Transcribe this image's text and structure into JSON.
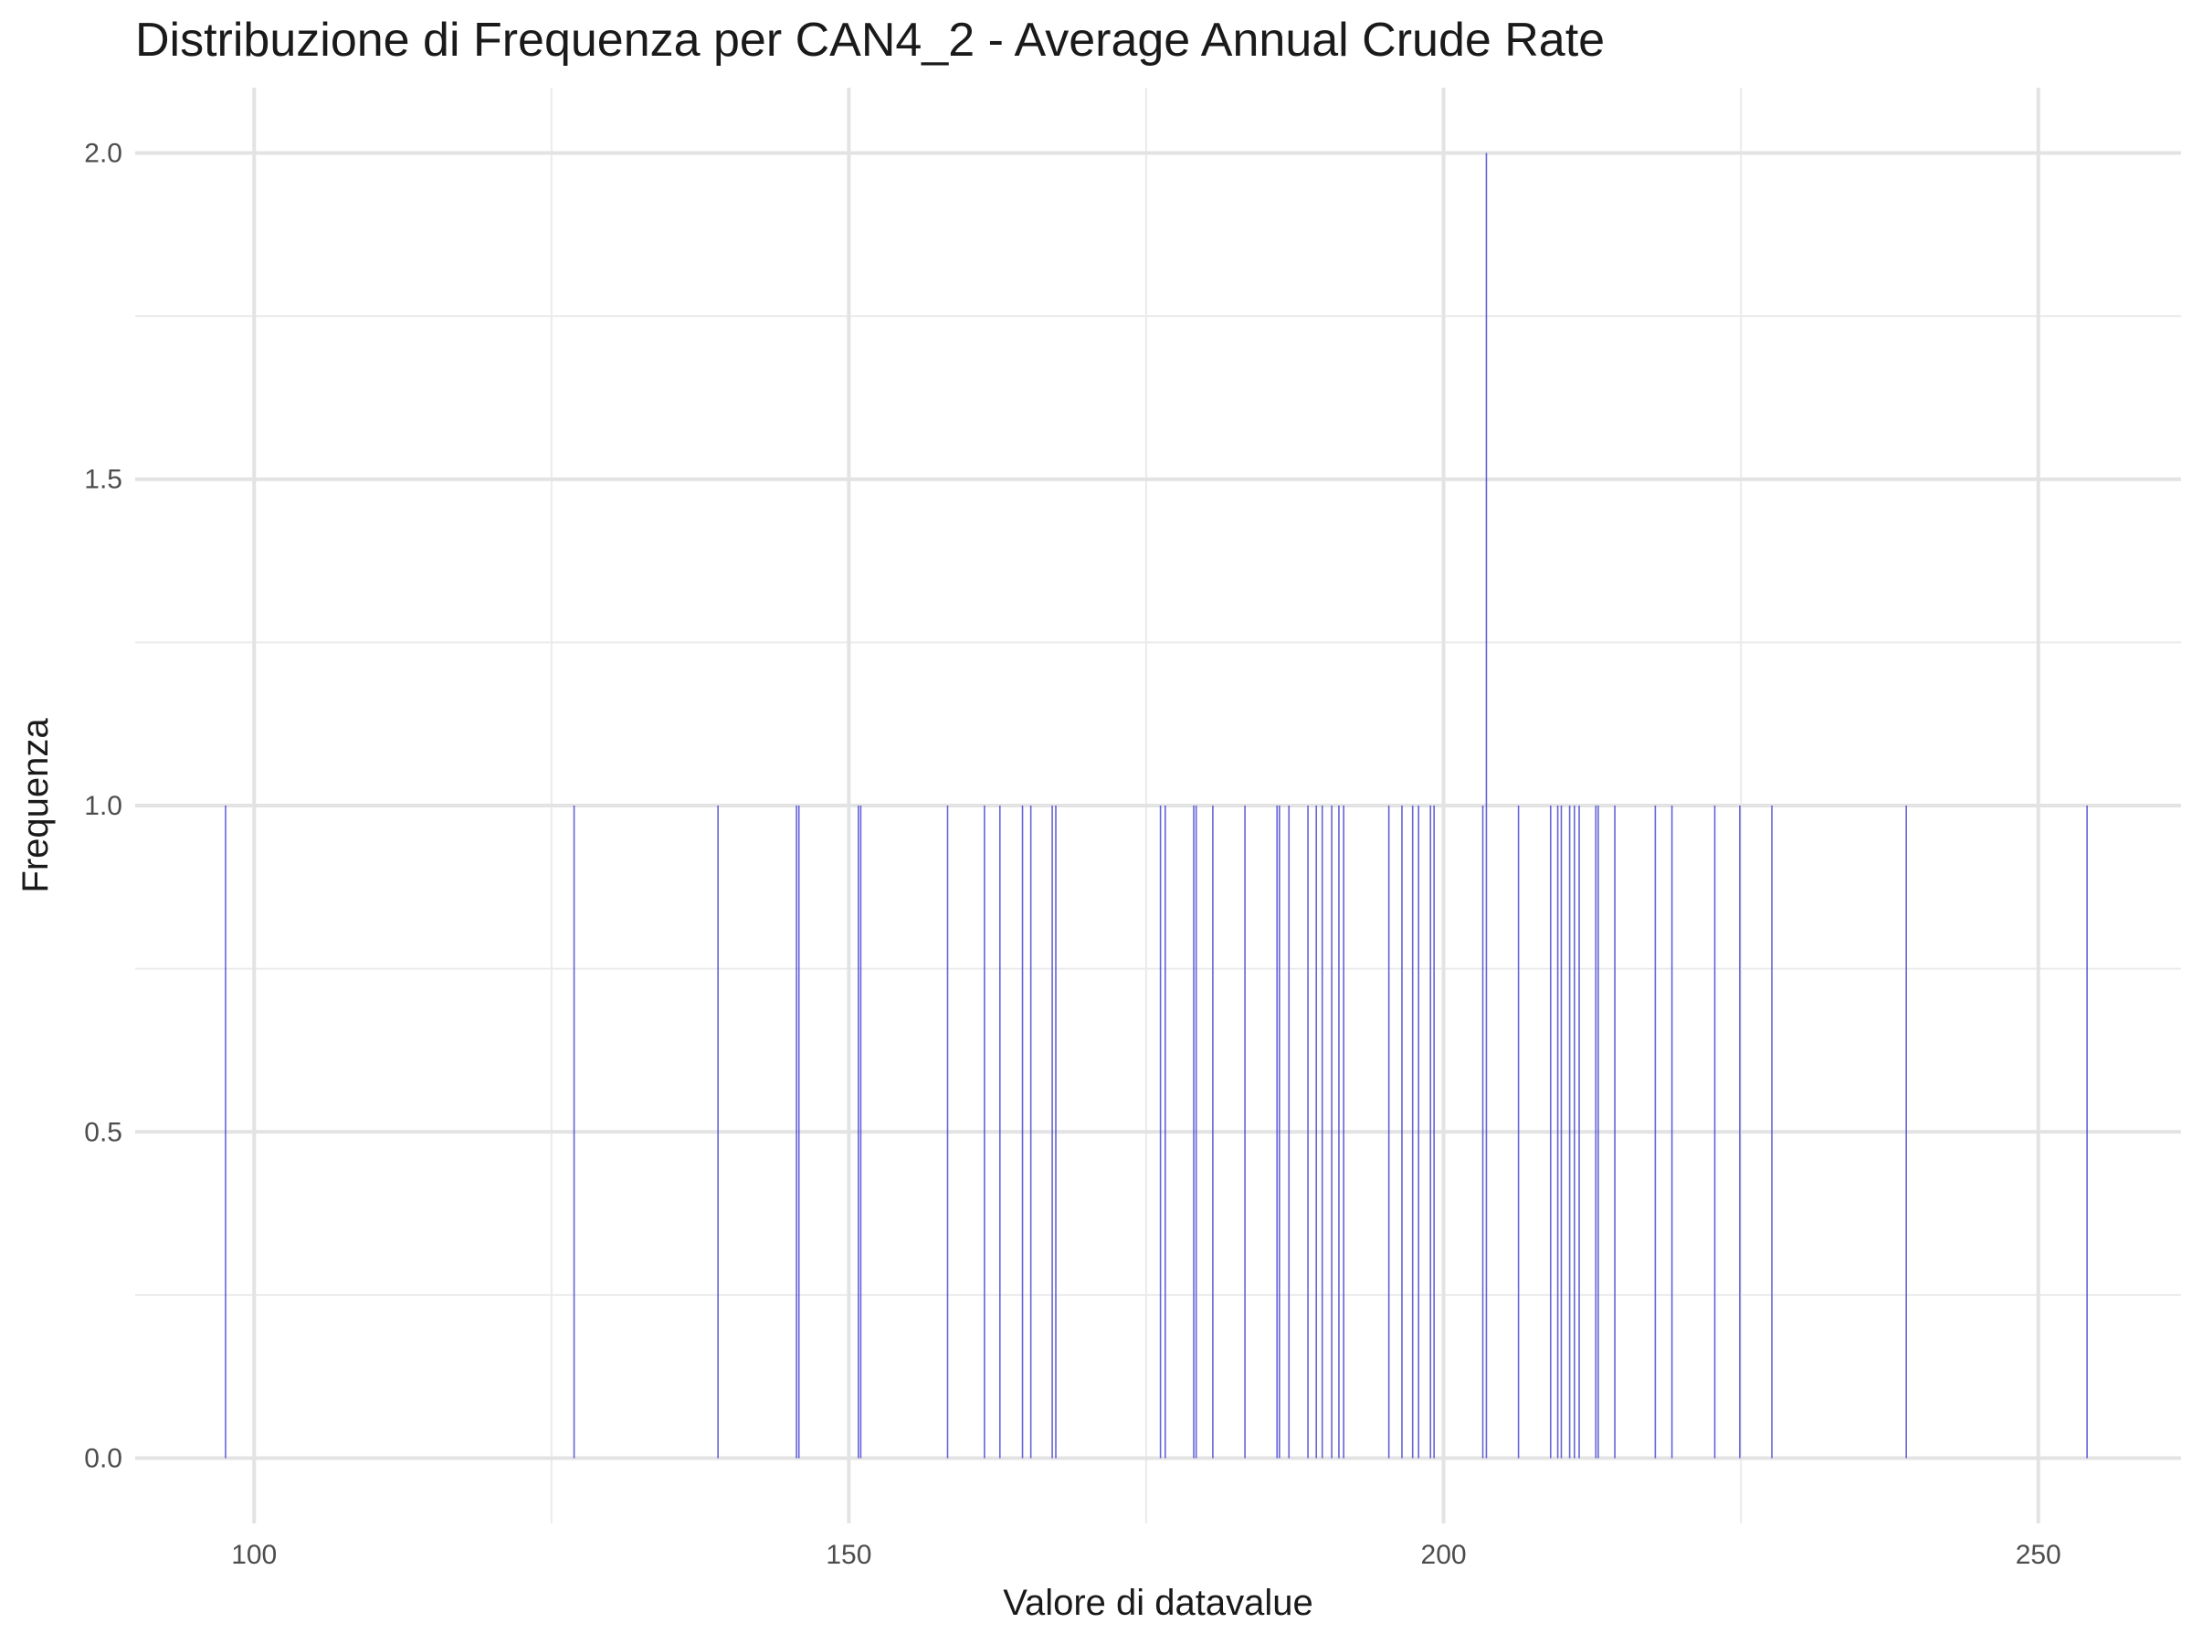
{
  "chart_data": {
    "type": "bar",
    "title": "Distribuzione di Frequenza per CAN4_2 - Average Annual Crude Rate",
    "xlabel": "Valore di datavalue",
    "ylabel": "Frequenza",
    "xlim": [
      90,
      262
    ],
    "ylim": [
      -0.1,
      2.1
    ],
    "x_ticks": [
      100,
      150,
      200,
      250
    ],
    "x_tick_labels": [
      "100",
      "150",
      "200",
      "250"
    ],
    "y_ticks": [
      0,
      0.5,
      1,
      1.5,
      2
    ],
    "y_tick_labels": [
      "0.0",
      "0.5",
      "1.0",
      "1.5",
      "2.0"
    ],
    "grid": true,
    "bar_color": "#4B48D4",
    "bars": [
      {
        "x": 97.6,
        "count": 1
      },
      {
        "x": 126.9,
        "count": 1
      },
      {
        "x": 139.0,
        "count": 1
      },
      {
        "x": 145.6,
        "count": 1
      },
      {
        "x": 145.8,
        "count": 1
      },
      {
        "x": 150.8,
        "count": 1
      },
      {
        "x": 151.0,
        "count": 1
      },
      {
        "x": 158.3,
        "count": 1
      },
      {
        "x": 161.4,
        "count": 1
      },
      {
        "x": 162.7,
        "count": 1
      },
      {
        "x": 164.6,
        "count": 1
      },
      {
        "x": 165.3,
        "count": 1
      },
      {
        "x": 167.1,
        "count": 1
      },
      {
        "x": 167.4,
        "count": 1
      },
      {
        "x": 176.2,
        "count": 1
      },
      {
        "x": 176.6,
        "count": 1
      },
      {
        "x": 179.0,
        "count": 1
      },
      {
        "x": 179.2,
        "count": 1
      },
      {
        "x": 180.6,
        "count": 1
      },
      {
        "x": 183.3,
        "count": 1
      },
      {
        "x": 186.0,
        "count": 1
      },
      {
        "x": 186.2,
        "count": 1
      },
      {
        "x": 187.0,
        "count": 1
      },
      {
        "x": 188.6,
        "count": 1
      },
      {
        "x": 189.3,
        "count": 1
      },
      {
        "x": 189.8,
        "count": 1
      },
      {
        "x": 190.6,
        "count": 1
      },
      {
        "x": 191.2,
        "count": 1
      },
      {
        "x": 191.6,
        "count": 1
      },
      {
        "x": 195.4,
        "count": 1
      },
      {
        "x": 196.5,
        "count": 1
      },
      {
        "x": 197.4,
        "count": 1
      },
      {
        "x": 197.9,
        "count": 1
      },
      {
        "x": 198.9,
        "count": 1
      },
      {
        "x": 199.2,
        "count": 1
      },
      {
        "x": 203.3,
        "count": 1
      },
      {
        "x": 203.6,
        "count": 2
      },
      {
        "x": 206.3,
        "count": 1
      },
      {
        "x": 209.0,
        "count": 1
      },
      {
        "x": 209.6,
        "count": 1
      },
      {
        "x": 209.9,
        "count": 1
      },
      {
        "x": 210.6,
        "count": 1
      },
      {
        "x": 211.0,
        "count": 1
      },
      {
        "x": 211.4,
        "count": 1
      },
      {
        "x": 212.8,
        "count": 1
      },
      {
        "x": 213.0,
        "count": 1
      },
      {
        "x": 214.4,
        "count": 1
      },
      {
        "x": 217.8,
        "count": 1
      },
      {
        "x": 219.2,
        "count": 1
      },
      {
        "x": 222.8,
        "count": 1
      },
      {
        "x": 224.9,
        "count": 1
      },
      {
        "x": 227.6,
        "count": 1
      },
      {
        "x": 238.9,
        "count": 1
      },
      {
        "x": 254.1,
        "count": 1
      }
    ]
  }
}
